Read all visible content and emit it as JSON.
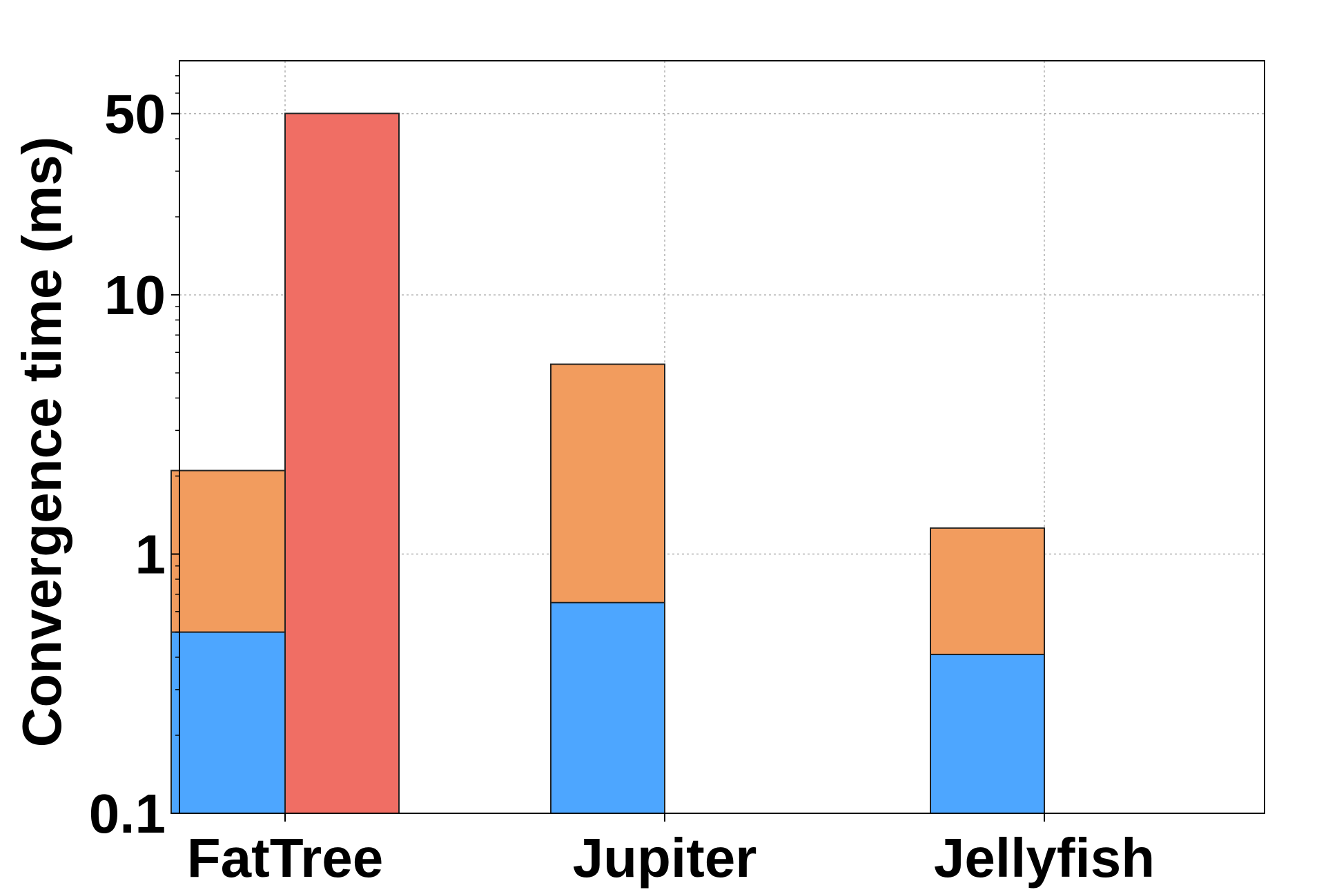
{
  "chart_data": {
    "type": "bar",
    "stacked": true,
    "yscale": "log",
    "categories": [
      "FatTree",
      "Jupiter",
      "Jellyfish"
    ],
    "ylabel": "Convergence time (ms)",
    "xlabel": "",
    "title": "",
    "ylim": [
      0.1,
      80
    ],
    "yticks": [
      0.1,
      1,
      10,
      50
    ],
    "ytick_labels": [
      "0.1",
      "1",
      "10",
      "50"
    ],
    "grid": true,
    "legend": "none",
    "series": [
      {
        "color": "#4da6ff",
        "group": 0,
        "values": [
          0.4,
          0.55,
          0.31
        ]
      },
      {
        "color": "#f29c5e",
        "group": 0,
        "values": [
          1.6,
          4.75,
          0.85
        ]
      },
      {
        "color": "#f06e64",
        "group": 1,
        "values": [
          50,
          null,
          null
        ]
      }
    ]
  }
}
